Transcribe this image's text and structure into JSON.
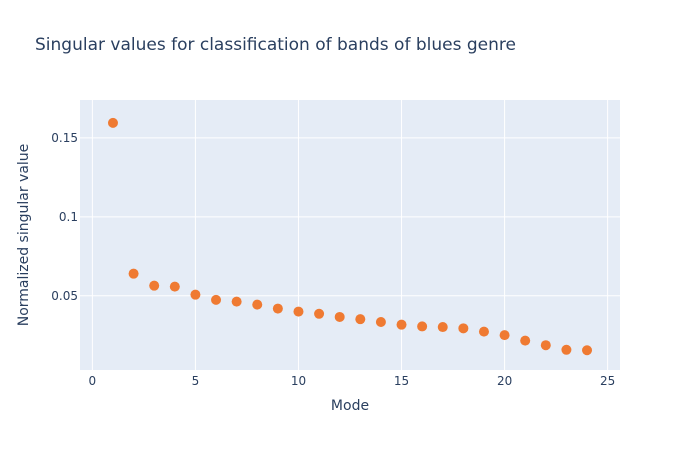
{
  "chart_data": {
    "type": "scatter",
    "title": "Singular values for classification of bands of blues genre",
    "xlabel": "Mode",
    "ylabel": "Normalized singular value",
    "xlim": [
      -0.6,
      25.6
    ],
    "ylim": [
      0.003,
      0.174
    ],
    "x_ticks": [
      0,
      5,
      10,
      15,
      20,
      25
    ],
    "x_tick_labels": [
      "0",
      "5",
      "10",
      "15",
      "20",
      "25"
    ],
    "y_ticks": [
      0.05,
      0.1,
      0.15
    ],
    "y_tick_labels": [
      "0.05",
      "0.1",
      "0.15"
    ],
    "grid": true,
    "colors": {
      "plot_background": "#e5ecf6",
      "grid": "#ffffff",
      "marker": "#ef7a32",
      "text": "#2a3f5f"
    },
    "series": [
      {
        "x": [
          1,
          2,
          3,
          4,
          5,
          6,
          7,
          8,
          9,
          10,
          11,
          12,
          13,
          14,
          15,
          16,
          17,
          18,
          19,
          20,
          21,
          22,
          23,
          24
        ],
        "y": [
          0.1595,
          0.064,
          0.0564,
          0.0558,
          0.0507,
          0.0474,
          0.0463,
          0.0444,
          0.0419,
          0.04,
          0.0386,
          0.0366,
          0.0352,
          0.0334,
          0.0317,
          0.0306,
          0.0302,
          0.0294,
          0.0273,
          0.0251,
          0.0216,
          0.0187,
          0.0158,
          0.0155
        ]
      }
    ]
  }
}
